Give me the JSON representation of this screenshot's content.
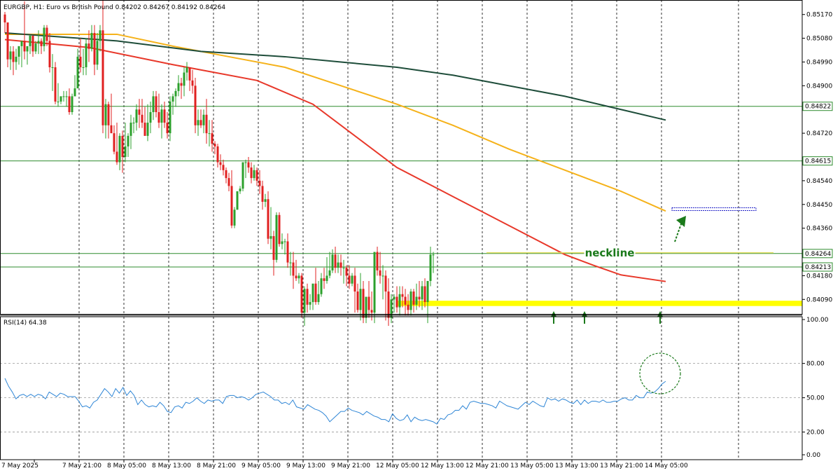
{
  "header": {
    "symbol_line": "EURGBP, H1: Euro vs British Pound  0.84202 0.84267 0.84192 0.84264"
  },
  "indicator": {
    "label": "RSI(14) 64.38"
  },
  "annotations": {
    "neckline": "neckline"
  },
  "colors": {
    "bull": "#2ca02c",
    "bear": "#e02020",
    "ma_fast": "#e8382a",
    "ma_mid": "#f5b21a",
    "ma_slow": "#1e4d3a",
    "rsi": "#2f86d6",
    "support": "#ffff00",
    "hline": "#2e8b2e",
    "neckline_line": "#e6e066",
    "target": "#2323c8",
    "arrow": "#1b7a1b"
  },
  "chart_data": [
    {
      "type": "candlestick",
      "price_axis": {
        "range": [
          0.84035,
          0.85225
        ],
        "tick_labels": [
          "0.85170",
          "0.85080",
          "0.84990",
          "0.84900",
          "0.84720",
          "0.84540",
          "0.84450",
          "0.84360",
          "0.84180",
          "0.84090"
        ],
        "tick_values": [
          0.8517,
          0.8508,
          0.8499,
          0.849,
          0.8472,
          0.8454,
          0.8445,
          0.8436,
          0.8418,
          0.8409
        ],
        "highlighted_levels": [
          {
            "label": "0.84822",
            "value": 0.84822
          },
          {
            "label": "0.84615",
            "value": 0.84615
          },
          {
            "label": "0.84264",
            "value": 0.84264
          },
          {
            "label": "0.84213",
            "value": 0.84213
          }
        ]
      },
      "time_axis": {
        "labels": [
          "7 May 2025",
          "7 May 21:00",
          "8 May 05:00",
          "8 May 13:00",
          "8 May 21:00",
          "9 May 05:00",
          "9 May 13:00",
          "9 May 21:00",
          "12 May 05:00",
          "12 May 13:00",
          "12 May 21:00",
          "13 May 05:00",
          "13 May 13:00",
          "13 May 21:00",
          "14 May 05:00"
        ],
        "separator_positions": [
          11,
          27,
          43,
          59,
          75,
          91,
          107,
          123,
          139,
          155,
          171,
          187,
          203,
          219,
          235
        ]
      },
      "candles": {
        "open": [
          0.8517,
          0.8514,
          0.85,
          0.8503,
          0.8499,
          0.8501,
          0.8505,
          0.8507,
          0.8503,
          0.8505,
          0.8509,
          0.8503,
          0.8506,
          0.8507,
          0.8505,
          0.8512,
          0.8507,
          0.8497,
          0.8497,
          0.8484,
          0.8484,
          0.8486,
          0.8486,
          0.8486,
          0.848,
          0.8486,
          0.8489,
          0.8501,
          0.8497,
          0.8497,
          0.8506,
          0.8504,
          0.851,
          0.8498,
          0.8507,
          0.8511,
          0.8475,
          0.8483,
          0.8475,
          0.8472,
          0.8465,
          0.8461,
          0.8471,
          0.8463,
          0.8467,
          0.8471,
          0.8476,
          0.8476,
          0.8481,
          0.8479,
          0.8476,
          0.8471,
          0.8476,
          0.848,
          0.8486,
          0.848,
          0.8476,
          0.8481,
          0.8476,
          0.8472,
          0.8484,
          0.8486,
          0.8488,
          0.8491,
          0.849,
          0.8495,
          0.8497,
          0.8492,
          0.849,
          0.8475,
          0.8477,
          0.8475,
          0.8479,
          0.8472,
          0.8472,
          0.8468,
          0.8467,
          0.8461,
          0.846,
          0.8458,
          0.8455,
          0.8452,
          0.8437,
          0.8443,
          0.845,
          0.8451,
          0.8461,
          0.8461,
          0.8459,
          0.8455,
          0.8458,
          0.8454,
          0.8452,
          0.8446,
          0.8447,
          0.8432,
          0.8433,
          0.8424,
          0.8441,
          0.843,
          0.8431,
          0.8431,
          0.8423,
          0.8423,
          0.8418,
          0.8417,
          0.8418,
          0.8404,
          0.8413,
          0.8407,
          0.8408,
          0.8415,
          0.8408,
          0.8411,
          0.8417,
          0.8416,
          0.8418,
          0.842,
          0.8426,
          0.8421,
          0.8423,
          0.8421,
          0.8421,
          0.8418,
          0.8415,
          0.8418,
          0.8412,
          0.8405,
          0.8413,
          0.8402,
          0.841,
          0.8405,
          0.8404,
          0.8427,
          0.842,
          0.8418,
          0.8418,
          0.8412,
          0.8402,
          0.8409,
          0.841,
          0.8406,
          0.8411,
          0.841,
          0.8407,
          0.8405,
          0.8412,
          0.8407,
          0.841,
          0.8409,
          0.8414,
          0.8408,
          0.8416,
          0.8426
        ],
        "high": [
          0.8518,
          0.8514,
          0.8505,
          0.8505,
          0.8504,
          0.8505,
          0.8506,
          0.8522,
          0.8505,
          0.8508,
          0.8509,
          0.8507,
          0.8511,
          0.8508,
          0.8513,
          0.8513,
          0.851,
          0.8502,
          0.8499,
          0.8491,
          0.8486,
          0.8488,
          0.8488,
          0.8489,
          0.8487,
          0.8494,
          0.8504,
          0.8508,
          0.8504,
          0.8508,
          0.8511,
          0.8513,
          0.8513,
          0.851,
          0.8513,
          0.8526,
          0.8485,
          0.8484,
          0.8487,
          0.8475,
          0.8476,
          0.8472,
          0.8473,
          0.8476,
          0.8472,
          0.8479,
          0.8478,
          0.8483,
          0.8485,
          0.8485,
          0.8482,
          0.8483,
          0.8484,
          0.8488,
          0.8488,
          0.8487,
          0.8483,
          0.8484,
          0.848,
          0.8486,
          0.8487,
          0.8489,
          0.8494,
          0.8493,
          0.8497,
          0.8499,
          0.8497,
          0.8496,
          0.8493,
          0.8481,
          0.8481,
          0.8481,
          0.8485,
          0.8477,
          0.8477,
          0.8469,
          0.8468,
          0.8464,
          0.8462,
          0.8459,
          0.8457,
          0.8458,
          0.8444,
          0.845,
          0.8452,
          0.8458,
          0.8462,
          0.8463,
          0.8461,
          0.846,
          0.8459,
          0.8458,
          0.8454,
          0.8449,
          0.845,
          0.8444,
          0.8435,
          0.8442,
          0.8442,
          0.8434,
          0.8432,
          0.8434,
          0.8427,
          0.8427,
          0.8424,
          0.8419,
          0.8419,
          0.8414,
          0.8415,
          0.8411,
          0.8414,
          0.8421,
          0.8416,
          0.8419,
          0.8421,
          0.8425,
          0.8427,
          0.8428,
          0.8429,
          0.8426,
          0.8426,
          0.8424,
          0.8422,
          0.8422,
          0.8419,
          0.8421,
          0.8415,
          0.8419,
          0.8416,
          0.841,
          0.8416,
          0.8412,
          0.8427,
          0.8429,
          0.8427,
          0.8422,
          0.842,
          0.8417,
          0.8411,
          0.8411,
          0.8414,
          0.8414,
          0.8414,
          0.8413,
          0.8411,
          0.8413,
          0.8413,
          0.8415,
          0.8416,
          0.8416,
          0.8417,
          0.8416,
          0.8429,
          0.8427
        ],
        "low": [
          0.851,
          0.8497,
          0.8496,
          0.8494,
          0.8496,
          0.8498,
          0.8497,
          0.85,
          0.8498,
          0.8502,
          0.8501,
          0.8502,
          0.8502,
          0.8502,
          0.8503,
          0.8505,
          0.8495,
          0.8488,
          0.8483,
          0.8482,
          0.8483,
          0.8484,
          0.8482,
          0.8479,
          0.8479,
          0.8486,
          0.849,
          0.8495,
          0.8494,
          0.8494,
          0.8499,
          0.8503,
          0.8494,
          0.8496,
          0.8503,
          0.8472,
          0.847,
          0.847,
          0.8472,
          0.8464,
          0.846,
          0.8458,
          0.8457,
          0.8461,
          0.8463,
          0.8466,
          0.8472,
          0.8473,
          0.8474,
          0.8474,
          0.8471,
          0.8469,
          0.8472,
          0.8477,
          0.8478,
          0.8474,
          0.847,
          0.8474,
          0.847,
          0.8469,
          0.8479,
          0.8482,
          0.8486,
          0.8485,
          0.8486,
          0.8492,
          0.8488,
          0.8487,
          0.8472,
          0.8471,
          0.8474,
          0.8472,
          0.8468,
          0.8467,
          0.8465,
          0.8464,
          0.8459,
          0.8458,
          0.8456,
          0.8453,
          0.845,
          0.8436,
          0.8436,
          0.8443,
          0.8449,
          0.845,
          0.8455,
          0.8457,
          0.8453,
          0.8454,
          0.8452,
          0.8449,
          0.8443,
          0.8444,
          0.843,
          0.8428,
          0.8418,
          0.8423,
          0.8429,
          0.8428,
          0.8426,
          0.8421,
          0.8418,
          0.8413,
          0.8416,
          0.8415,
          0.8402,
          0.8399,
          0.8404,
          0.8405,
          0.8405,
          0.8407,
          0.8407,
          0.841,
          0.8413,
          0.8415,
          0.8417,
          0.8419,
          0.8419,
          0.8419,
          0.8418,
          0.8415,
          0.8414,
          0.8413,
          0.8414,
          0.8404,
          0.8404,
          0.8401,
          0.84,
          0.84,
          0.8402,
          0.8401,
          0.84,
          0.8418,
          0.8415,
          0.8409,
          0.8401,
          0.8399,
          0.84,
          0.8404,
          0.8404,
          0.8403,
          0.8406,
          0.8403,
          0.8403,
          0.8403,
          0.8404,
          0.8405,
          0.8406,
          0.8405,
          0.8406,
          0.84,
          0.8414,
          0.8419
        ],
        "close": [
          0.8514,
          0.85,
          0.8503,
          0.8499,
          0.8501,
          0.8505,
          0.8507,
          0.8503,
          0.8505,
          0.8509,
          0.8503,
          0.8506,
          0.8507,
          0.8505,
          0.8512,
          0.8507,
          0.8497,
          0.8497,
          0.8484,
          0.8484,
          0.8486,
          0.8486,
          0.8486,
          0.848,
          0.8486,
          0.8489,
          0.8501,
          0.8497,
          0.8497,
          0.8506,
          0.8504,
          0.851,
          0.8498,
          0.8507,
          0.8511,
          0.8475,
          0.8483,
          0.8475,
          0.8472,
          0.8465,
          0.8461,
          0.8471,
          0.8463,
          0.8467,
          0.8471,
          0.8476,
          0.8476,
          0.8481,
          0.8479,
          0.8476,
          0.8471,
          0.8476,
          0.848,
          0.8486,
          0.848,
          0.8476,
          0.8481,
          0.8476,
          0.8472,
          0.8484,
          0.8486,
          0.8488,
          0.8491,
          0.849,
          0.8495,
          0.8497,
          0.8492,
          0.849,
          0.8475,
          0.8477,
          0.8475,
          0.8479,
          0.8472,
          0.8472,
          0.8468,
          0.8467,
          0.8461,
          0.846,
          0.8458,
          0.8455,
          0.8452,
          0.8437,
          0.8443,
          0.845,
          0.8451,
          0.8461,
          0.8461,
          0.8459,
          0.8455,
          0.8458,
          0.8454,
          0.8452,
          0.8446,
          0.8447,
          0.8432,
          0.8433,
          0.8424,
          0.8441,
          0.843,
          0.8431,
          0.8431,
          0.8423,
          0.8423,
          0.8418,
          0.8417,
          0.8418,
          0.8404,
          0.8413,
          0.8407,
          0.8408,
          0.8415,
          0.8408,
          0.8411,
          0.8417,
          0.8416,
          0.8418,
          0.842,
          0.8426,
          0.8421,
          0.8423,
          0.8421,
          0.8421,
          0.8418,
          0.8415,
          0.8418,
          0.8412,
          0.8405,
          0.8413,
          0.8402,
          0.841,
          0.8405,
          0.8404,
          0.8427,
          0.842,
          0.8418,
          0.8418,
          0.8412,
          0.8402,
          0.8409,
          0.841,
          0.8406,
          0.8411,
          0.841,
          0.8407,
          0.8405,
          0.8412,
          0.8407,
          0.841,
          0.8409,
          0.8414,
          0.8408,
          0.8416,
          0.8426,
          0.8426
        ]
      },
      "moving_averages": [
        {
          "points": [
            [
              0,
              0.85075
            ],
            [
              30,
              0.85045
            ],
            [
              60,
              0.8498
            ],
            [
              90,
              0.8492
            ],
            [
              110,
              0.8483
            ],
            [
              120,
              0.8475
            ],
            [
              140,
              0.8459
            ],
            [
              160,
              0.8448
            ],
            [
              180,
              0.8437
            ],
            [
              200,
              0.8426
            ],
            [
              210,
              0.8422
            ],
            [
              220,
              0.84183
            ],
            [
              236,
              0.84158
            ]
          ]
        },
        {
          "points": [
            [
              0,
              0.85095
            ],
            [
              40,
              0.85095
            ],
            [
              60,
              0.8505
            ],
            [
              80,
              0.8501
            ],
            [
              100,
              0.8497
            ],
            [
              120,
              0.849
            ],
            [
              140,
              0.8483
            ],
            [
              160,
              0.8475
            ],
            [
              180,
              0.8466
            ],
            [
              200,
              0.8458
            ],
            [
              220,
              0.845
            ],
            [
              236,
              0.84425
            ]
          ]
        },
        {
          "points": [
            [
              0,
              0.851
            ],
            [
              40,
              0.8507
            ],
            [
              70,
              0.8503
            ],
            [
              100,
              0.8501
            ],
            [
              120,
              0.8499
            ],
            [
              140,
              0.8497
            ],
            [
              160,
              0.8494
            ],
            [
              180,
              0.849
            ],
            [
              200,
              0.8486
            ],
            [
              220,
              0.8481
            ],
            [
              236,
              0.8477
            ]
          ]
        }
      ],
      "support_zone": [
        0.84065,
        0.84085
      ],
      "neckline_level": 0.84267,
      "target_level": 0.84432,
      "touch_points": [
        196,
        207,
        234
      ]
    },
    {
      "type": "line",
      "title": "RSI(14) 64.38",
      "y_range": [
        0,
        100
      ],
      "tick_labels": [
        "100.00",
        "80.00",
        "50.00",
        "20.00",
        "0.00"
      ],
      "tick_values": [
        100,
        80,
        50,
        20,
        0
      ],
      "values": [
        67,
        60,
        55,
        49,
        52,
        53,
        51,
        53,
        51,
        53,
        52,
        49,
        55,
        53,
        51,
        54,
        53,
        51,
        51,
        51,
        47,
        42,
        43,
        41,
        46,
        48,
        53,
        58,
        55,
        51,
        58,
        54,
        59,
        52,
        56,
        52,
        44,
        48,
        44,
        42,
        43,
        42,
        46,
        43,
        38,
        37,
        42,
        43,
        41,
        46,
        45,
        47,
        50,
        47,
        45,
        48,
        47,
        48,
        48,
        45,
        51,
        52,
        52,
        50,
        51,
        50,
        48,
        50,
        53,
        54,
        55,
        53,
        51,
        48,
        48,
        45,
        46,
        44,
        48,
        42,
        41,
        40,
        44,
        42,
        40,
        39,
        37,
        34,
        29,
        32,
        35,
        38,
        38,
        41,
        39,
        38,
        37,
        35,
        38,
        36,
        34,
        33,
        31,
        31,
        29,
        36,
        32,
        30,
        31,
        35,
        29,
        33,
        31,
        30,
        31,
        30,
        29,
        27,
        32,
        31,
        35,
        36,
        39,
        39,
        43,
        40,
        46,
        47,
        46,
        45,
        45,
        44,
        43,
        41,
        47,
        45,
        43,
        42,
        41,
        40,
        43,
        46,
        44,
        47,
        45,
        43,
        42,
        50,
        48,
        49,
        47,
        49,
        48,
        46,
        45,
        48,
        44,
        48,
        45,
        47,
        47,
        46,
        48,
        46,
        46,
        47,
        47,
        49,
        50,
        48,
        48,
        52,
        50,
        50,
        55,
        54,
        55,
        58,
        62,
        64.38
      ],
      "x_start": 0
    }
  ]
}
